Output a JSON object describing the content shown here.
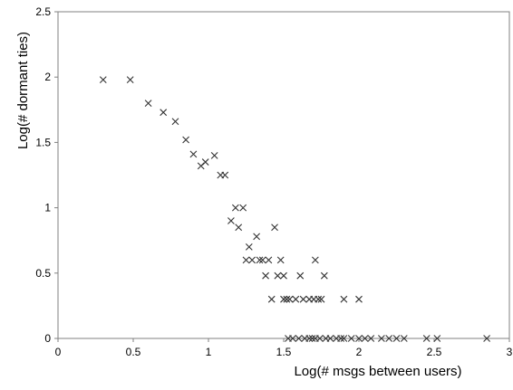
{
  "chart_data": {
    "type": "scatter",
    "title": "",
    "xlabel": "Log(# msgs between users)",
    "ylabel": "Log(# dormant ties)",
    "xlim": [
      0,
      3
    ],
    "ylim": [
      0,
      2.5
    ],
    "xticks": [
      0,
      0.5,
      1,
      1.5,
      2,
      2.5,
      3
    ],
    "yticks": [
      0,
      0.5,
      1,
      1.5,
      2,
      2.5
    ],
    "xtick_labels": [
      "0",
      "0.5",
      "1",
      "1.5",
      "2",
      "2.5",
      "3"
    ],
    "ytick_labels": [
      "0",
      "0.5",
      "1",
      "1.5",
      "2",
      "2.5"
    ],
    "grid": false,
    "legend": "none",
    "marker": "x",
    "marker_color": "#333333",
    "axis_color": "#808080",
    "points": [
      [
        0.3,
        1.98
      ],
      [
        0.48,
        1.98
      ],
      [
        0.6,
        1.8
      ],
      [
        0.7,
        1.73
      ],
      [
        0.78,
        1.66
      ],
      [
        0.85,
        1.52
      ],
      [
        0.9,
        1.41
      ],
      [
        0.95,
        1.32
      ],
      [
        0.98,
        1.35
      ],
      [
        1.04,
        1.4
      ],
      [
        1.08,
        1.25
      ],
      [
        1.11,
        1.25
      ],
      [
        1.15,
        0.9
      ],
      [
        1.18,
        1.0
      ],
      [
        1.2,
        0.85
      ],
      [
        1.23,
        1.0
      ],
      [
        1.25,
        0.6
      ],
      [
        1.27,
        0.7
      ],
      [
        1.29,
        0.6
      ],
      [
        1.32,
        0.78
      ],
      [
        1.34,
        0.6
      ],
      [
        1.36,
        0.6
      ],
      [
        1.38,
        0.48
      ],
      [
        1.4,
        0.6
      ],
      [
        1.42,
        0.3
      ],
      [
        1.44,
        0.85
      ],
      [
        1.46,
        0.48
      ],
      [
        1.48,
        0.6
      ],
      [
        1.5,
        0.48
      ],
      [
        1.5,
        0.3
      ],
      [
        1.52,
        0.3
      ],
      [
        1.54,
        0.3
      ],
      [
        1.58,
        0.3
      ],
      [
        1.61,
        0.48
      ],
      [
        1.63,
        0.3
      ],
      [
        1.67,
        0.3
      ],
      [
        1.7,
        0.3
      ],
      [
        1.71,
        0.6
      ],
      [
        1.73,
        0.3
      ],
      [
        1.75,
        0.3
      ],
      [
        1.77,
        0.48
      ],
      [
        1.9,
        0.3
      ],
      [
        2.0,
        0.3
      ],
      [
        1.53,
        0.0
      ],
      [
        1.56,
        0.0
      ],
      [
        1.6,
        0.0
      ],
      [
        1.64,
        0.0
      ],
      [
        1.67,
        0.0
      ],
      [
        1.69,
        0.0
      ],
      [
        1.71,
        0.0
      ],
      [
        1.74,
        0.0
      ],
      [
        1.78,
        0.0
      ],
      [
        1.81,
        0.0
      ],
      [
        1.85,
        0.0
      ],
      [
        1.88,
        0.0
      ],
      [
        1.9,
        0.0
      ],
      [
        1.95,
        0.0
      ],
      [
        2.0,
        0.0
      ],
      [
        2.04,
        0.0
      ],
      [
        2.08,
        0.0
      ],
      [
        2.15,
        0.0
      ],
      [
        2.2,
        0.0
      ],
      [
        2.25,
        0.0
      ],
      [
        2.3,
        0.0
      ],
      [
        2.45,
        0.0
      ],
      [
        2.52,
        0.0
      ],
      [
        2.85,
        0.0
      ]
    ]
  }
}
